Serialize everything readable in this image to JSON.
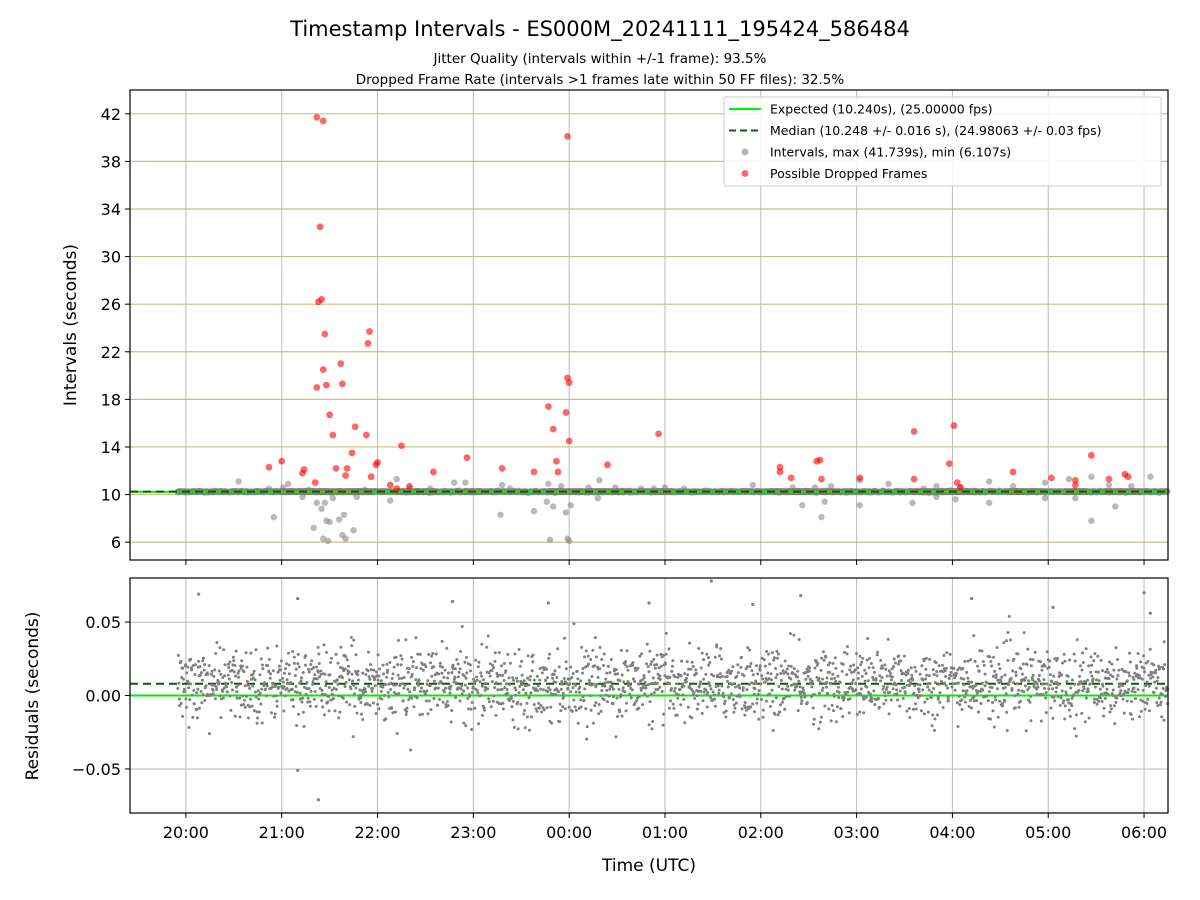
{
  "chart_data": [
    {
      "type": "scatter",
      "title": "Timestamp Intervals - ES000M_20241111_195424_586484",
      "subtitle_lines": [
        "Jitter Quality (intervals within +/-1 frame): 93.5%",
        "Dropped Frame Rate (intervals >1 frames late within 50 FF files): 32.5%"
      ],
      "ylabel": "Intervals (seconds)",
      "xlim": [
        "19:25",
        "06:15"
      ],
      "ylim": [
        4.5,
        44
      ],
      "y_ticks": [
        6,
        10,
        14,
        18,
        22,
        26,
        30,
        34,
        38,
        42
      ],
      "x_ticks": [
        "20:00",
        "21:00",
        "22:00",
        "23:00",
        "00:00",
        "01:00",
        "02:00",
        "03:00",
        "04:00",
        "05:00",
        "06:00"
      ],
      "grid": "on",
      "legend_placement": "top-right",
      "colors": {
        "expected": "#00ee00",
        "median": "#006400",
        "intervals": "#808080",
        "dropped": "#ff0000",
        "hgrid": "#c8c080",
        "vgrid": "#bbbbbb"
      },
      "legend": [
        {
          "label": "Expected (10.240s), (25.00000 fps)",
          "kind": "line",
          "color": "#00ee00"
        },
        {
          "label": "Median (10.248 +/- 0.016 s), (24.98063 +/- 0.03 fps)",
          "kind": "dashed",
          "color": "#006400"
        },
        {
          "label": "Intervals, max (41.739s), min (6.107s)",
          "kind": "marker",
          "color": "#808080"
        },
        {
          "label": "Possible Dropped Frames",
          "kind": "marker",
          "color": "#ff0000"
        }
      ],
      "expected_value": 10.24,
      "median_value": 10.248,
      "series": [
        {
          "name": "Intervals",
          "color": "#808080",
          "points": [
            [
              "19:55",
              10.2
            ],
            [
              "20:33",
              11.1
            ],
            [
              "20:52",
              10.5
            ],
            [
              "20:55",
              8.1
            ],
            [
              "21:01",
              10.6
            ],
            [
              "21:04",
              10.9
            ],
            [
              "21:13",
              9.8
            ],
            [
              "21:17",
              10.4
            ],
            [
              "21:20",
              7.2
            ],
            [
              "21:22",
              9.3
            ],
            [
              "21:25",
              8.8
            ],
            [
              "21:26",
              6.3
            ],
            [
              "21:27",
              9.3
            ],
            [
              "21:28",
              7.8
            ],
            [
              "21:29",
              6.1
            ],
            [
              "21:30",
              7.7
            ],
            [
              "21:32",
              9.7
            ],
            [
              "21:36",
              7.9
            ],
            [
              "21:38",
              6.6
            ],
            [
              "21:39",
              8.3
            ],
            [
              "21:40",
              6.3
            ],
            [
              "21:45",
              7.0
            ],
            [
              "21:47",
              9.8
            ],
            [
              "21:52",
              10.4
            ],
            [
              "22:08",
              9.5
            ],
            [
              "22:12",
              11.3
            ],
            [
              "22:20",
              10.5
            ],
            [
              "22:33",
              10.5
            ],
            [
              "22:48",
              11.0
            ],
            [
              "22:55",
              11.0
            ],
            [
              "23:17",
              8.3
            ],
            [
              "23:18",
              10.8
            ],
            [
              "23:23",
              10.5
            ],
            [
              "23:38",
              8.6
            ],
            [
              "23:46",
              9.4
            ],
            [
              "23:47",
              10.9
            ],
            [
              "23:48",
              6.2
            ],
            [
              "23:50",
              9.0
            ],
            [
              "23:55",
              10.7
            ],
            [
              "23:58",
              8.5
            ],
            [
              "23:59",
              6.3
            ],
            [
              "00:00",
              6.1
            ],
            [
              "00:01",
              9.1
            ],
            [
              "00:12",
              10.6
            ],
            [
              "00:18",
              9.7
            ],
            [
              "00:19",
              11.2
            ],
            [
              "00:29",
              10.6
            ],
            [
              "00:45",
              10.5
            ],
            [
              "00:53",
              10.5
            ],
            [
              "01:00",
              10.6
            ],
            [
              "01:12",
              10.5
            ],
            [
              "01:55",
              10.8
            ],
            [
              "02:20",
              10.6
            ],
            [
              "02:26",
              9.1
            ],
            [
              "02:34",
              10.6
            ],
            [
              "02:38",
              8.1
            ],
            [
              "02:40",
              9.4
            ],
            [
              "02:44",
              10.7
            ],
            [
              "03:02",
              9.1
            ],
            [
              "03:02",
              11.2
            ],
            [
              "03:20",
              10.9
            ],
            [
              "03:35",
              9.3
            ],
            [
              "03:42",
              10.5
            ],
            [
              "03:50",
              9.8
            ],
            [
              "03:50",
              10.7
            ],
            [
              "04:02",
              9.6
            ],
            [
              "04:05",
              10.6
            ],
            [
              "04:23",
              9.3
            ],
            [
              "04:23",
              11.1
            ],
            [
              "04:38",
              10.7
            ],
            [
              "04:58",
              9.7
            ],
            [
              "04:58",
              11.0
            ],
            [
              "05:13",
              11.3
            ],
            [
              "05:17",
              9.7
            ],
            [
              "05:17",
              10.3
            ],
            [
              "05:27",
              7.8
            ],
            [
              "05:27",
              11.5
            ],
            [
              "05:38",
              10.8
            ],
            [
              "05:42",
              9.0
            ],
            [
              "05:52",
              10.7
            ],
            [
              "06:04",
              11.5
            ],
            [
              "06:09",
              10.2
            ]
          ]
        },
        {
          "name": "Possible Dropped Frames",
          "color": "#ff0000",
          "points": [
            [
              "20:52",
              12.3
            ],
            [
              "21:00",
              12.8
            ],
            [
              "21:13",
              11.8
            ],
            [
              "21:14",
              12.1
            ],
            [
              "21:21",
              11.0
            ],
            [
              "21:22",
              19.0
            ],
            [
              "21:22",
              41.7
            ],
            [
              "21:23",
              26.2
            ],
            [
              "21:24",
              32.5
            ],
            [
              "21:25",
              26.4
            ],
            [
              "21:26",
              41.4
            ],
            [
              "21:26",
              20.5
            ],
            [
              "21:27",
              23.5
            ],
            [
              "21:28",
              19.2
            ],
            [
              "21:30",
              16.7
            ],
            [
              "21:32",
              15.0
            ],
            [
              "21:34",
              12.2
            ],
            [
              "21:37",
              21.0
            ],
            [
              "21:38",
              19.3
            ],
            [
              "21:40",
              11.6
            ],
            [
              "21:41",
              12.2
            ],
            [
              "21:44",
              13.5
            ],
            [
              "21:46",
              15.7
            ],
            [
              "21:53",
              15.0
            ],
            [
              "21:54",
              22.7
            ],
            [
              "21:55",
              23.7
            ],
            [
              "21:56",
              11.5
            ],
            [
              "21:59",
              12.5
            ],
            [
              "22:00",
              12.7
            ],
            [
              "22:08",
              10.8
            ],
            [
              "22:12",
              10.5
            ],
            [
              "22:15",
              14.1
            ],
            [
              "22:20",
              10.7
            ],
            [
              "22:35",
              11.9
            ],
            [
              "22:56",
              13.1
            ],
            [
              "23:18",
              12.2
            ],
            [
              "23:38",
              11.9
            ],
            [
              "23:47",
              17.4
            ],
            [
              "23:50",
              15.5
            ],
            [
              "23:52",
              12.8
            ],
            [
              "23:53",
              11.9
            ],
            [
              "23:58",
              16.9
            ],
            [
              "23:59",
              19.8
            ],
            [
              "23:59",
              40.1
            ],
            [
              "00:00",
              19.4
            ],
            [
              "00:00",
              14.5
            ],
            [
              "00:24",
              12.5
            ],
            [
              "00:56",
              15.1
            ],
            [
              "02:12",
              12.3
            ],
            [
              "02:12",
              11.9
            ],
            [
              "02:19",
              11.4
            ],
            [
              "02:35",
              12.8
            ],
            [
              "02:37",
              12.9
            ],
            [
              "02:38",
              11.3
            ],
            [
              "03:02",
              11.4
            ],
            [
              "03:36",
              15.3
            ],
            [
              "03:36",
              11.3
            ],
            [
              "03:58",
              12.6
            ],
            [
              "04:01",
              15.8
            ],
            [
              "04:03",
              11.0
            ],
            [
              "04:05",
              10.6
            ],
            [
              "04:38",
              11.9
            ],
            [
              "05:02",
              11.4
            ],
            [
              "05:17",
              11.2
            ],
            [
              "05:17",
              10.8
            ],
            [
              "05:27",
              13.3
            ],
            [
              "05:38",
              11.3
            ],
            [
              "05:48",
              11.7
            ],
            [
              "05:50",
              11.5
            ]
          ]
        }
      ],
      "dropped_runs": [
        [
          "21:00",
          "21:57"
        ],
        [
          "22:02",
          "22:04"
        ],
        [
          "22:12",
          "22:37"
        ],
        [
          "22:55",
          "23:05"
        ],
        [
          "23:47",
          "00:35"
        ],
        [
          "00:52",
          "01:05"
        ],
        [
          "02:10",
          "02:50"
        ],
        [
          "03:35",
          "04:15"
        ],
        [
          "04:35",
          "04:55"
        ],
        [
          "05:10",
          "05:25"
        ],
        [
          "05:35",
          "05:58"
        ]
      ]
    },
    {
      "type": "scatter",
      "xlabel": "Time (UTC)",
      "ylabel": "Residuals (seconds)",
      "xlim": [
        "19:25",
        "06:15"
      ],
      "ylim": [
        -0.08,
        0.08
      ],
      "y_tick_values": [
        -0.05,
        0.0,
        0.05
      ],
      "y_tick_labels": [
        "−0.05",
        "0.00",
        "0.05"
      ],
      "grid": "on",
      "expected_residual": 0.0,
      "median_residual": 0.008,
      "residual_spread": 0.012,
      "residual_start": "19:55",
      "residual_end": "06:15",
      "residual_count": 2200,
      "outliers": [
        [
          "20:08",
          0.069
        ],
        [
          "21:10",
          0.066
        ],
        [
          "21:10",
          -0.051
        ],
        [
          "21:23",
          -0.071
        ],
        [
          "22:47",
          0.064
        ],
        [
          "23:47",
          0.063
        ],
        [
          "00:50",
          0.063
        ],
        [
          "01:29",
          0.078
        ],
        [
          "01:55",
          0.062
        ],
        [
          "02:25",
          0.068
        ],
        [
          "04:12",
          0.066
        ],
        [
          "05:03",
          0.06
        ],
        [
          "06:00",
          0.07
        ],
        [
          "06:04",
          0.056
        ]
      ],
      "series": [
        {
          "name": "Residuals",
          "color": "#808080"
        }
      ]
    }
  ]
}
